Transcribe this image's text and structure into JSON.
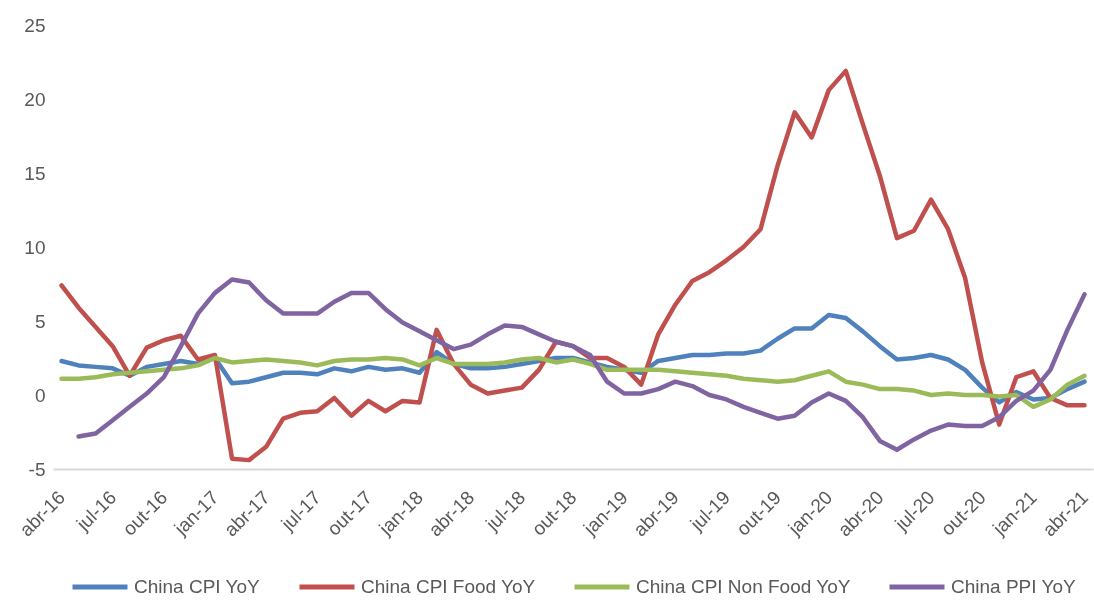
{
  "chart_data": {
    "type": "line",
    "categories": [
      "abr-16",
      null,
      null,
      "jul-16",
      null,
      null,
      "out-16",
      null,
      null,
      "jan-17",
      null,
      null,
      "abr-17",
      null,
      null,
      "jul-17",
      null,
      null,
      "out-17",
      null,
      null,
      "jan-18",
      null,
      null,
      "abr-18",
      null,
      null,
      "jul-18",
      null,
      null,
      "out-18",
      null,
      null,
      "jan-19",
      null,
      null,
      "abr-19",
      null,
      null,
      "jul-19",
      null,
      null,
      "out-19",
      null,
      null,
      "jan-20",
      null,
      null,
      "abr-20",
      null,
      null,
      "jul-20",
      null,
      null,
      "out-20",
      null,
      null,
      "jan-21",
      null,
      null,
      "abr-21"
    ],
    "series": [
      {
        "name": "China CPI YoY",
        "color": "#4f81bd",
        "values": [
          2.3,
          2.0,
          1.9,
          1.8,
          1.3,
          1.9,
          2.1,
          2.3,
          2.1,
          2.5,
          0.8,
          0.9,
          1.2,
          1.5,
          1.5,
          1.4,
          1.8,
          1.6,
          1.9,
          1.7,
          1.8,
          1.5,
          2.9,
          2.1,
          1.8,
          1.8,
          1.9,
          2.1,
          2.3,
          2.5,
          2.5,
          2.2,
          1.9,
          1.7,
          1.5,
          2.3,
          2.5,
          2.7,
          2.7,
          2.8,
          2.8,
          3.0,
          3.8,
          4.5,
          4.5,
          5.4,
          5.2,
          4.3,
          3.3,
          2.4,
          2.5,
          2.7,
          2.4,
          1.7,
          0.5,
          -0.5,
          0.2,
          -0.3,
          -0.2,
          0.4,
          0.9
        ]
      },
      {
        "name": "China CPI Food YoY",
        "color": "#c0504d",
        "values": [
          7.4,
          5.9,
          4.6,
          3.3,
          1.3,
          3.2,
          3.7,
          4.0,
          2.4,
          2.7,
          -4.3,
          -4.4,
          -3.5,
          -1.6,
          -1.2,
          -1.1,
          -0.2,
          -1.4,
          -0.4,
          -1.1,
          -0.4,
          -0.5,
          4.4,
          2.1,
          0.7,
          0.1,
          0.3,
          0.5,
          1.7,
          3.6,
          3.3,
          2.5,
          2.5,
          1.9,
          0.7,
          4.1,
          6.1,
          7.7,
          8.3,
          9.1,
          10.0,
          11.2,
          15.5,
          19.1,
          17.4,
          20.6,
          21.9,
          18.3,
          14.8,
          10.6,
          11.1,
          13.2,
          11.2,
          7.9,
          2.2,
          -2.0,
          1.2,
          1.6,
          -0.2,
          -0.7,
          -0.7
        ]
      },
      {
        "name": "China CPI Non Food YoY",
        "color": "#9bbb59",
        "values": [
          1.1,
          1.1,
          1.2,
          1.4,
          1.5,
          1.6,
          1.7,
          1.8,
          2.0,
          2.5,
          2.2,
          2.3,
          2.4,
          2.3,
          2.2,
          2.0,
          2.3,
          2.4,
          2.4,
          2.5,
          2.4,
          2.0,
          2.5,
          2.1,
          2.1,
          2.1,
          2.2,
          2.4,
          2.5,
          2.2,
          2.4,
          2.1,
          1.7,
          1.7,
          1.7,
          1.7,
          1.6,
          1.5,
          1.4,
          1.3,
          1.1,
          1.0,
          0.9,
          1.0,
          1.3,
          1.6,
          0.9,
          0.7,
          0.4,
          0.4,
          0.3,
          0.0,
          0.1,
          0.0,
          0.0,
          -0.1,
          0.0,
          -0.8,
          -0.3,
          0.7,
          1.3
        ]
      },
      {
        "name": "China PPI YoY",
        "color": "#8064a2",
        "values": [
          null,
          -2.8,
          -2.6,
          -1.7,
          -0.8,
          0.1,
          1.2,
          3.3,
          5.5,
          6.9,
          7.8,
          7.6,
          6.4,
          5.5,
          5.5,
          5.5,
          6.3,
          6.9,
          6.9,
          5.8,
          4.9,
          4.3,
          3.7,
          3.1,
          3.4,
          4.1,
          4.7,
          4.6,
          4.1,
          3.6,
          3.3,
          2.7,
          0.9,
          0.1,
          0.1,
          0.4,
          0.9,
          0.6,
          0.0,
          -0.3,
          -0.8,
          -1.2,
          -1.6,
          -1.4,
          -0.5,
          0.1,
          -0.4,
          -1.5,
          -3.1,
          -3.7,
          -3.0,
          -2.4,
          -2.0,
          -2.1,
          -2.1,
          -1.5,
          -0.4,
          0.3,
          1.7,
          4.4,
          6.8
        ]
      }
    ],
    "ylim": [
      -5,
      25
    ],
    "yticks": [
      -5,
      0,
      5,
      10,
      15,
      20,
      25
    ],
    "legend": "bottom"
  }
}
